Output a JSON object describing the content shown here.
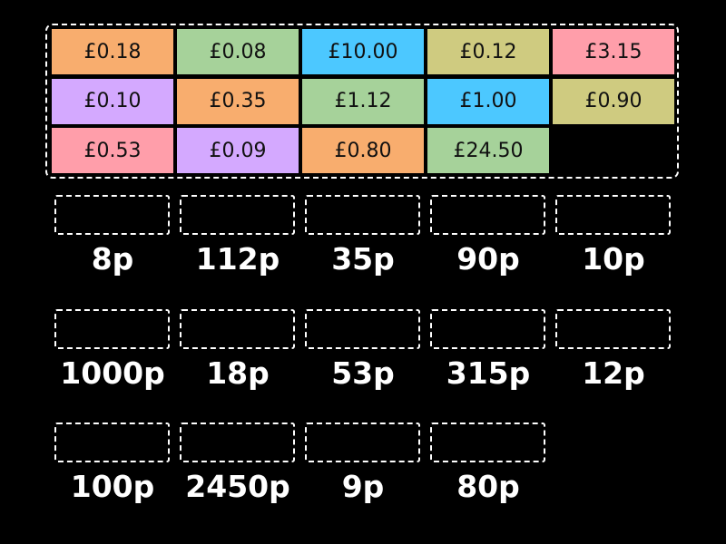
{
  "colors": {
    "orange": "#f8ad6e",
    "green": "#a6d29a",
    "blue": "#4cc8ff",
    "olive": "#cfcb80",
    "pink": "#ff9eaa",
    "purple": "#d4a9ff"
  },
  "tiles": [
    {
      "text": "£0.18",
      "color": "#f8ad6e"
    },
    {
      "text": "£0.08",
      "color": "#a6d29a"
    },
    {
      "text": "£10.00",
      "color": "#4cc8ff"
    },
    {
      "text": "£0.12",
      "color": "#cfcb80"
    },
    {
      "text": "£3.15",
      "color": "#ff9eaa"
    },
    {
      "text": "£0.10",
      "color": "#d4a9ff"
    },
    {
      "text": "£0.35",
      "color": "#f8ad6e"
    },
    {
      "text": "£1.12",
      "color": "#a6d29a"
    },
    {
      "text": "£1.00",
      "color": "#4cc8ff"
    },
    {
      "text": "£0.90",
      "color": "#cfcb80"
    },
    {
      "text": "£0.53",
      "color": "#ff9eaa"
    },
    {
      "text": "£0.09",
      "color": "#d4a9ff"
    },
    {
      "text": "£0.80",
      "color": "#f8ad6e"
    },
    {
      "text": "£24.50",
      "color": "#a6d29a"
    }
  ],
  "targets": [
    "8p",
    "112p",
    "35p",
    "90p",
    "10p",
    "1000p",
    "18p",
    "53p",
    "315p",
    "12p",
    "100p",
    "2450p",
    "9p",
    "80p"
  ]
}
